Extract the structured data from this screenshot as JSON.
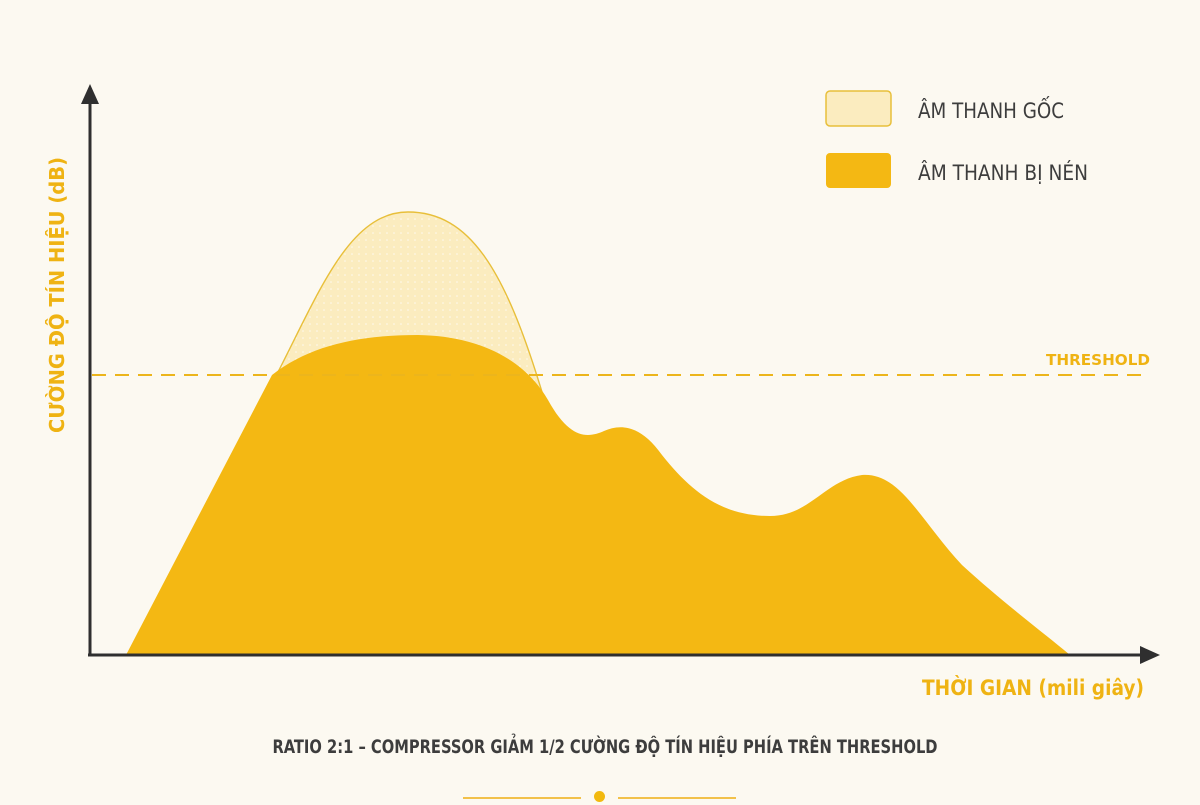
{
  "colors": {
    "background": "#fcf9f1",
    "axis": "#2f2f2f",
    "accent": "#f2b90f",
    "original_fill": "#fbecbf",
    "original_stroke": "#e8bf3a",
    "compressed_fill": "#f4b813",
    "text_dark": "#3d3d3d"
  },
  "y_axis_label": "CƯỜNG ĐỘ TÍN HIỆU (dB)",
  "x_axis_label": "THỜI GIAN (mili giây)",
  "threshold_label": "THRESHOLD",
  "legend": {
    "original": "ÂM THANH GỐC",
    "compressed": "ÂM THANH BỊ NÉN"
  },
  "caption": "RATIO 2:1 – COMPRESSOR GIẢM 1/2 CƯỜNG ĐỘ TÍN HIỆU PHÍA TRÊN THRESHOLD"
}
